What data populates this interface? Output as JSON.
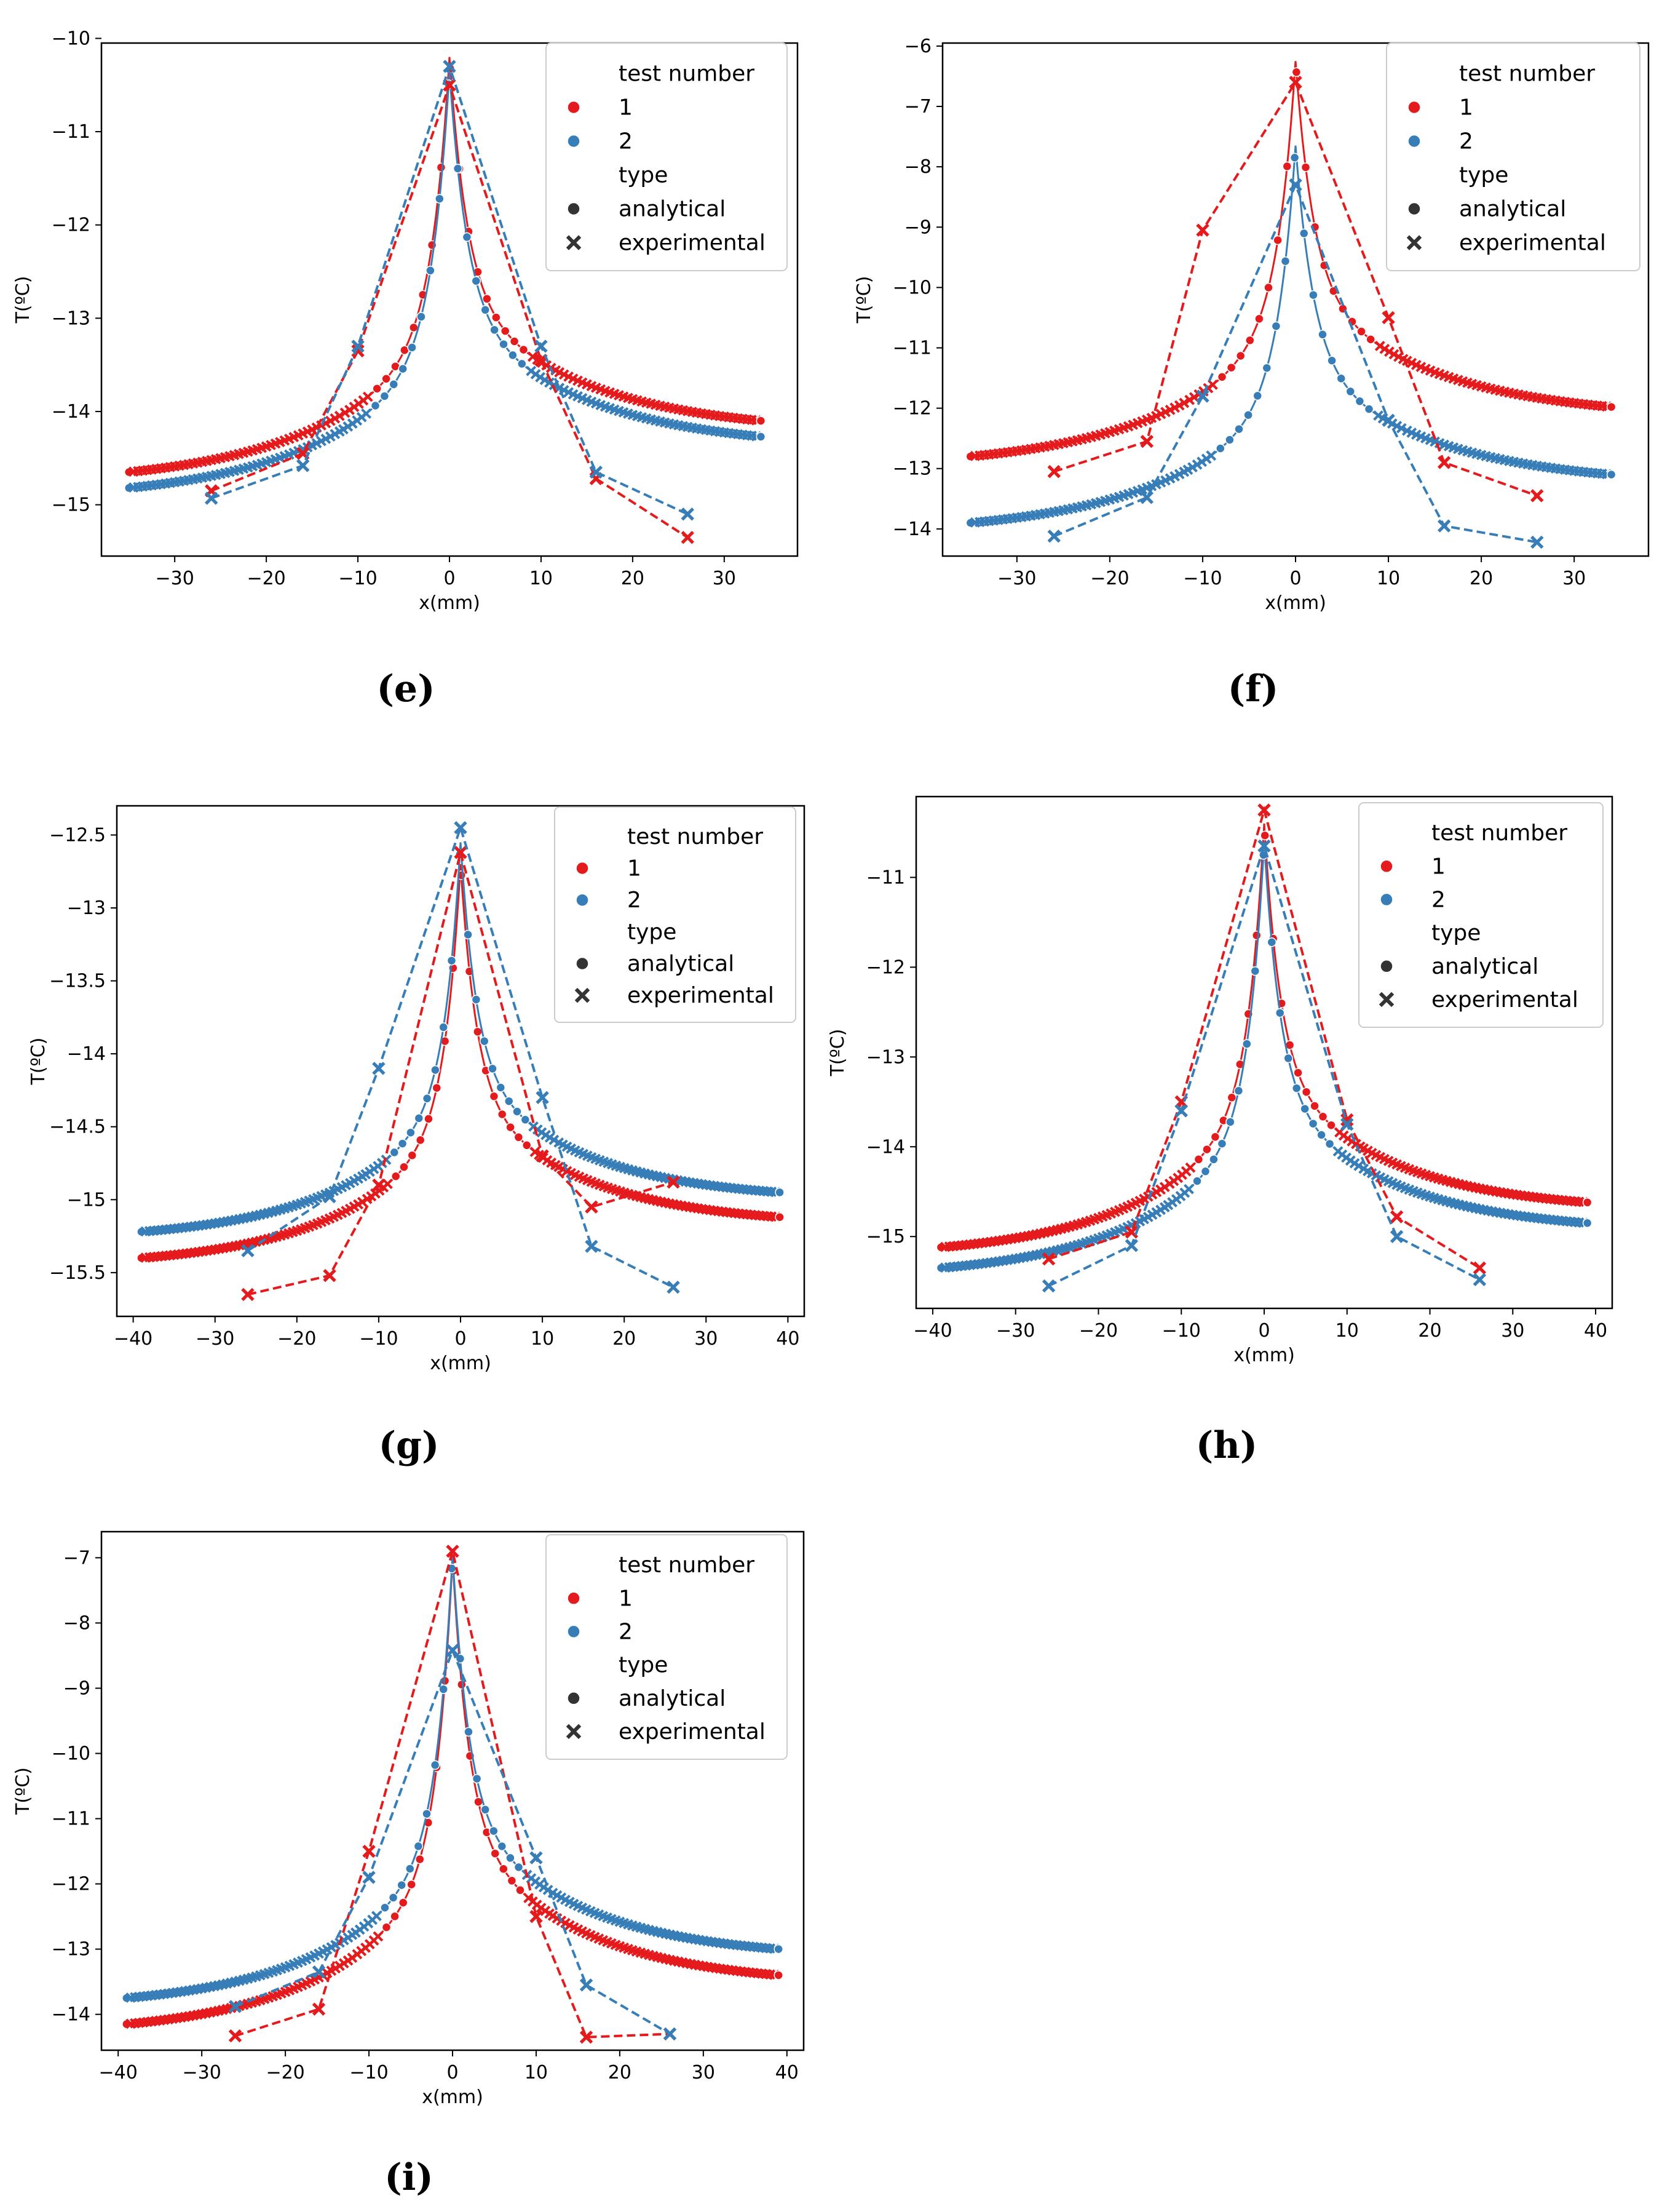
{
  "figure": {
    "legend": {
      "hue_title": "test number",
      "hue_entries": [
        "1",
        "2"
      ],
      "style_title": "type",
      "style_entries": [
        "analytical",
        "experimental"
      ]
    },
    "colors": {
      "series1": "#e41a1c",
      "series2": "#377eb8",
      "dark": "#333333"
    }
  },
  "chart_data": [
    {
      "type": "line",
      "panel_label": "(e)",
      "xlabel": "x(mm)",
      "ylabel": "T(ºC)",
      "xlim": [
        -38,
        38
      ],
      "ylim": [
        -15.55,
        -10.05
      ],
      "xticks": [
        -30,
        -20,
        -10,
        0,
        10,
        20,
        30
      ],
      "yticks": [
        -15,
        -14,
        -13,
        -12,
        -11,
        -10
      ],
      "series": [
        {
          "name": "1",
          "kind": "analytical",
          "x_range": [
            -35,
            34
          ],
          "peak": -10.2,
          "left_end": -14.65,
          "right_end": -14.1
        },
        {
          "name": "2",
          "kind": "analytical",
          "x_range": [
            -35,
            34
          ],
          "peak": -10.35,
          "left_end": -14.82,
          "right_end": -14.27
        },
        {
          "name": "1",
          "kind": "experimental",
          "x": [
            -26,
            -16,
            -10,
            0,
            10,
            16,
            26
          ],
          "y": [
            -14.85,
            -14.45,
            -13.35,
            -10.5,
            -13.45,
            -14.72,
            -15.35
          ]
        },
        {
          "name": "2",
          "kind": "experimental",
          "x": [
            -26,
            -16,
            -10,
            0,
            10,
            16,
            26
          ],
          "y": [
            -14.93,
            -14.58,
            -13.3,
            -10.3,
            -13.3,
            -14.65,
            -15.1
          ]
        }
      ]
    },
    {
      "type": "line",
      "panel_label": "(f)",
      "xlabel": "x(mm)",
      "ylabel": "T(ºC)",
      "xlim": [
        -38,
        38
      ],
      "ylim": [
        -14.45,
        -5.95
      ],
      "xticks": [
        -30,
        -20,
        -10,
        0,
        10,
        20,
        30
      ],
      "yticks": [
        -14,
        -13,
        -12,
        -11,
        -10,
        -9,
        -8,
        -7,
        -6
      ],
      "series": [
        {
          "name": "1",
          "kind": "analytical",
          "x_range": [
            -35,
            34
          ],
          "peak": -6.25,
          "left_end": -12.8,
          "right_end": -11.98
        },
        {
          "name": "2",
          "kind": "analytical",
          "x_range": [
            -35,
            34
          ],
          "peak": -7.65,
          "left_end": -13.9,
          "right_end": -13.1
        },
        {
          "name": "1",
          "kind": "experimental",
          "x": [
            -26,
            -16,
            -10,
            0,
            10,
            16,
            26
          ],
          "y": [
            -13.05,
            -12.55,
            -9.05,
            -6.6,
            -10.5,
            -12.9,
            -13.45
          ]
        },
        {
          "name": "2",
          "kind": "experimental",
          "x": [
            -26,
            -16,
            -10,
            0,
            10,
            16,
            26
          ],
          "y": [
            -14.12,
            -13.48,
            -11.8,
            -8.3,
            -12.2,
            -13.95,
            -14.22
          ]
        }
      ]
    },
    {
      "type": "line",
      "panel_label": "(g)",
      "xlabel": "x(mm)",
      "ylabel": "T(ºC)",
      "xlim": [
        -42,
        42
      ],
      "ylim": [
        -15.8,
        -12.3
      ],
      "xticks": [
        -40,
        -30,
        -20,
        -10,
        0,
        10,
        20,
        30,
        40
      ],
      "yticks": [
        -15.5,
        -15.0,
        -14.5,
        -14.0,
        -13.5,
        -13.0,
        -12.5
      ],
      "series": [
        {
          "name": "1",
          "kind": "analytical",
          "x_range": [
            -39,
            39
          ],
          "peak": -12.7,
          "left_end": -15.4,
          "right_end": -15.12
        },
        {
          "name": "2",
          "kind": "analytical",
          "x_range": [
            -39,
            39
          ],
          "peak": -12.55,
          "left_end": -15.22,
          "right_end": -14.95
        },
        {
          "name": "1",
          "kind": "experimental",
          "x": [
            -26,
            -16,
            -10,
            0,
            10,
            16,
            26
          ],
          "y": [
            -15.65,
            -15.52,
            -14.9,
            -12.62,
            -14.7,
            -15.05,
            -14.88
          ]
        },
        {
          "name": "2",
          "kind": "experimental",
          "x": [
            -26,
            -16,
            -10,
            0,
            10,
            16,
            26
          ],
          "y": [
            -15.35,
            -14.98,
            -14.1,
            -12.45,
            -14.3,
            -15.32,
            -15.6
          ]
        }
      ]
    },
    {
      "type": "line",
      "panel_label": "(h)",
      "xlabel": "x(mm)",
      "ylabel": "T(ºC)",
      "xlim": [
        -42,
        42
      ],
      "ylim": [
        -15.8,
        -10.1
      ],
      "xticks": [
        -40,
        -30,
        -20,
        -10,
        0,
        10,
        20,
        30,
        40
      ],
      "yticks": [
        -15,
        -14,
        -13,
        -12,
        -11
      ],
      "series": [
        {
          "name": "1",
          "kind": "analytical",
          "x_range": [
            -39,
            39
          ],
          "peak": -10.4,
          "left_end": -15.12,
          "right_end": -14.62
        },
        {
          "name": "2",
          "kind": "analytical",
          "x_range": [
            -39,
            39
          ],
          "peak": -10.6,
          "left_end": -15.35,
          "right_end": -14.85
        },
        {
          "name": "1",
          "kind": "experimental",
          "x": [
            -26,
            -16,
            -10,
            0,
            10,
            16,
            26
          ],
          "y": [
            -15.25,
            -14.95,
            -13.5,
            -10.25,
            -13.7,
            -14.78,
            -15.35
          ]
        },
        {
          "name": "2",
          "kind": "experimental",
          "x": [
            -26,
            -16,
            -10,
            0,
            10,
            16,
            26
          ],
          "y": [
            -15.55,
            -15.1,
            -13.6,
            -10.65,
            -13.75,
            -15.0,
            -15.48
          ]
        }
      ]
    },
    {
      "type": "line",
      "panel_label": "(i)",
      "xlabel": "x(mm)",
      "ylabel": "T(ºC)",
      "xlim": [
        -42,
        42
      ],
      "ylim": [
        -14.55,
        -6.6
      ],
      "xticks": [
        -40,
        -30,
        -20,
        -10,
        0,
        10,
        20,
        30,
        40
      ],
      "yticks": [
        -14,
        -13,
        -12,
        -11,
        -10,
        -9,
        -8,
        -7
      ],
      "series": [
        {
          "name": "1",
          "kind": "analytical",
          "x_range": [
            -39,
            39
          ],
          "peak": -7.0,
          "left_end": -14.15,
          "right_end": -13.4
        },
        {
          "name": "2",
          "kind": "analytical",
          "x_range": [
            -39,
            39
          ],
          "peak": -6.95,
          "left_end": -13.75,
          "right_end": -13.0
        },
        {
          "name": "1",
          "kind": "experimental",
          "x": [
            -26,
            -16,
            -10,
            0,
            10,
            16,
            26
          ],
          "y": [
            -14.33,
            -13.92,
            -11.5,
            -6.9,
            -12.5,
            -14.35,
            -14.3
          ]
        },
        {
          "name": "2",
          "kind": "experimental",
          "x": [
            -26,
            -16,
            -10,
            0,
            10,
            16,
            26
          ],
          "y": [
            -13.88,
            -13.35,
            -11.9,
            -8.42,
            -11.6,
            -13.55,
            -14.3
          ]
        }
      ]
    }
  ]
}
